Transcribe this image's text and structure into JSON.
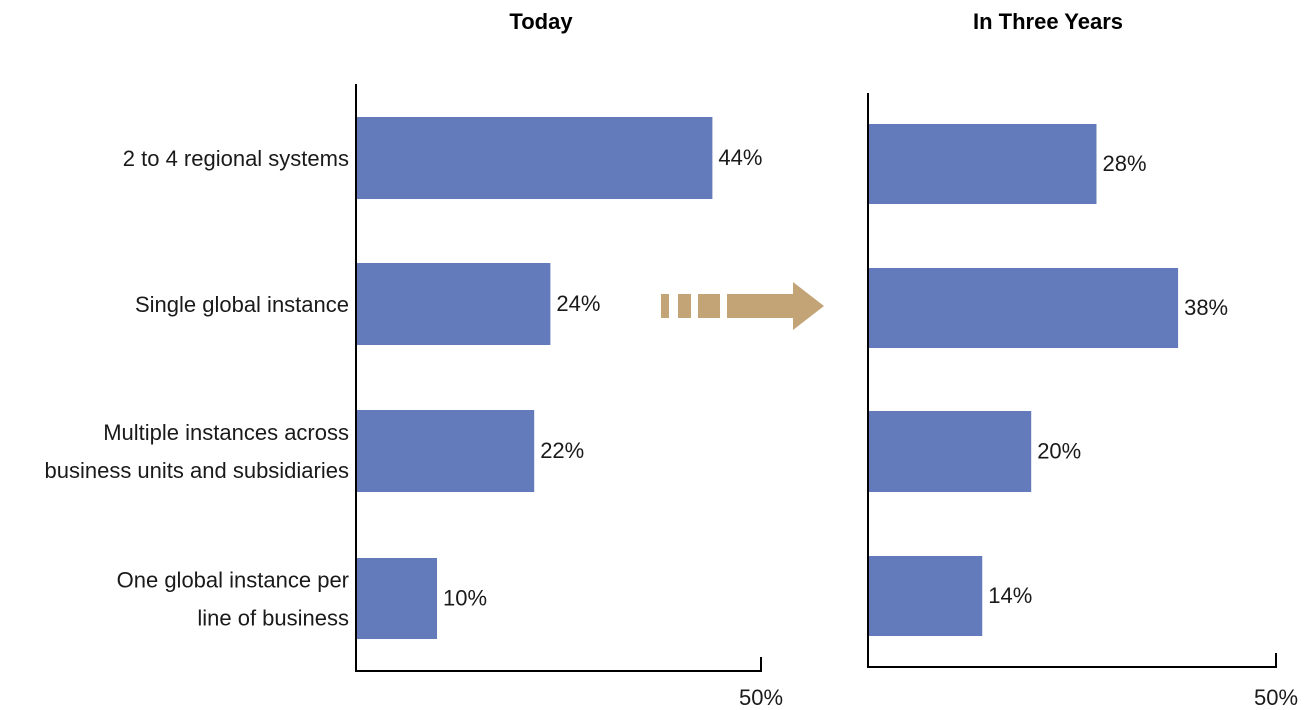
{
  "chart_data": [
    {
      "type": "bar",
      "orientation": "horizontal",
      "title": "Today",
      "categories": [
        "2 to 4 regional systems",
        "Single global instance",
        "Multiple instances across business units and subsidiaries",
        "One global instance per line of business"
      ],
      "category_lines": [
        [
          "2 to 4 regional systems"
        ],
        [
          "Single global instance"
        ],
        [
          "Multiple instances across",
          "business units and subsidiaries"
        ],
        [
          "One global instance per",
          "line of business"
        ]
      ],
      "values": [
        44,
        24,
        22,
        10
      ],
      "value_labels": [
        "44%",
        "24%",
        "22%",
        "10%"
      ],
      "xlim": [
        0,
        50
      ],
      "tick_label": "50%",
      "bar_color": "#637bbb"
    },
    {
      "type": "bar",
      "orientation": "horizontal",
      "title": "In Three Years",
      "categories": [
        "2 to 4 regional systems",
        "Single global instance",
        "Multiple instances across business units and subsidiaries",
        "One global instance per line of business"
      ],
      "values": [
        28,
        38,
        20,
        14
      ],
      "value_labels": [
        "28%",
        "38%",
        "20%",
        "14%"
      ],
      "xlim": [
        0,
        50
      ],
      "tick_label": "50%",
      "bar_color": "#637bbb"
    }
  ],
  "arrow_color": "#c2a476"
}
